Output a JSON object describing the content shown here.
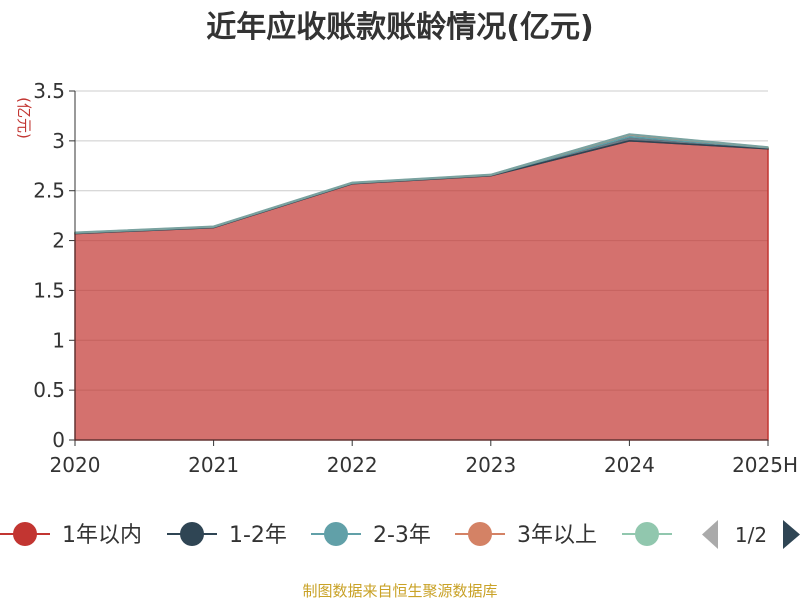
{
  "chart_data": {
    "type": "area",
    "stacked": true,
    "title": "近年应收账款账龄情况(亿元)",
    "ylabel": "(亿元)",
    "xlabel": "",
    "categories": [
      "2020",
      "2021",
      "2022",
      "2023",
      "2024",
      "2025H"
    ],
    "ylim": [
      0,
      3.5
    ],
    "yticks": [
      "0",
      "0.5",
      "1",
      "1.5",
      "2",
      "2.5",
      "3",
      "3.5"
    ],
    "grid": true,
    "series": [
      {
        "name": "1年以内",
        "color": "#c23531",
        "values": [
          2.07,
          2.13,
          2.57,
          2.65,
          3.0,
          2.92
        ]
      },
      {
        "name": "1-2年",
        "color": "#2f4554",
        "values": [
          0.005,
          0.005,
          0.005,
          0.005,
          0.04,
          0.01
        ]
      },
      {
        "name": "2-3年",
        "color": "#61a0a8",
        "values": [
          0.003,
          0.003,
          0.003,
          0.003,
          0.02,
          0.003
        ]
      },
      {
        "name": "3年以上",
        "color": "#d48265",
        "values": [
          0.002,
          0.002,
          0.002,
          0.002,
          0.005,
          0.002
        ]
      },
      {
        "name": "",
        "color": "#91c7ae",
        "values": [
          0.001,
          0.001,
          0.001,
          0.001,
          0.001,
          0.001
        ]
      }
    ],
    "legend": {
      "position": "bottom",
      "page": "1/2"
    }
  },
  "source": "制图数据来自恒生聚源数据库"
}
